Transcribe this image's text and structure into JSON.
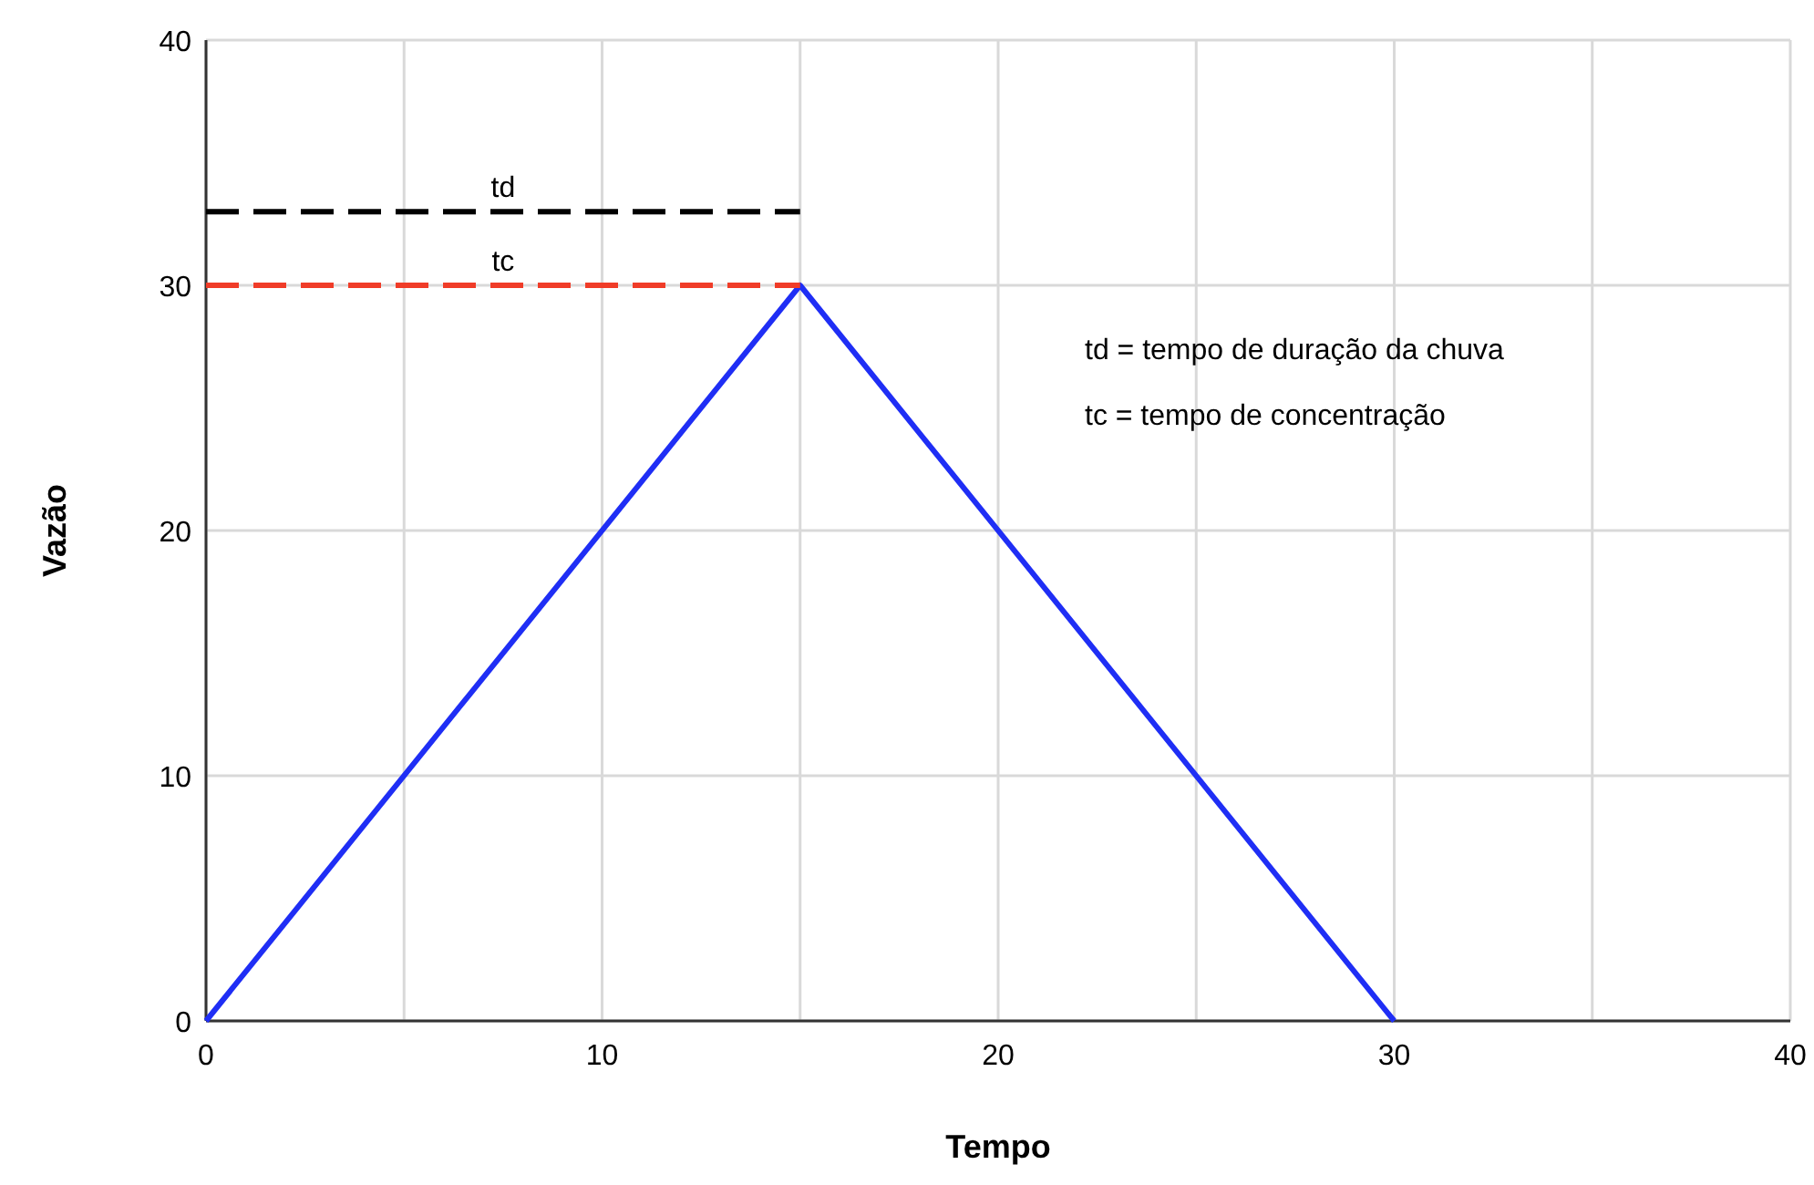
{
  "chart_data": {
    "type": "line",
    "xlabel": "Tempo",
    "ylabel": "Vazão",
    "xlim": [
      0,
      40
    ],
    "ylim": [
      0,
      40
    ],
    "xticks": [
      0,
      {
        "value": 5,
        "label": null
      },
      10,
      {
        "value": 15,
        "label": null
      },
      20,
      {
        "value": 25,
        "label": null
      },
      30,
      {
        "value": 35,
        "label": null
      },
      40
    ],
    "yticks": [
      0,
      10,
      20,
      30,
      40
    ],
    "grid": true,
    "marker": "none",
    "series": [
      {
        "color": "#1f2ef5",
        "x": [
          0,
          15,
          30
        ],
        "values": [
          0,
          30,
          0
        ],
        "line_style": "solid"
      },
      {
        "name": "td",
        "color": "#000000",
        "x": [
          0,
          15
        ],
        "values": [
          33,
          33
        ],
        "line_style": "dashed"
      },
      {
        "name": "tc",
        "color": "#f03c28",
        "x": [
          0,
          15
        ],
        "values": [
          30,
          30
        ],
        "line_style": "dashed"
      }
    ],
    "annotations": [
      "td = tempo de duração da chuva",
      "tc = tempo de concentração"
    ]
  }
}
